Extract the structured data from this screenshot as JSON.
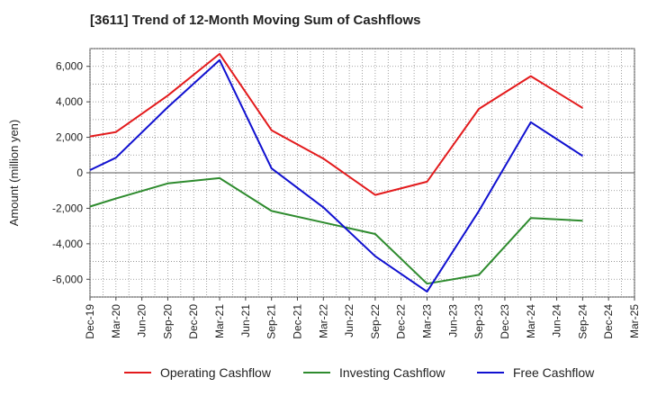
{
  "chart_data": {
    "type": "line",
    "title": "[3611]  Trend of 12-Month Moving Sum of Cashflows",
    "ylabel": "Amount (million yen)",
    "xlabel": "",
    "x": [
      "Dec-19",
      "Mar-20",
      "Jun-20",
      "Sep-20",
      "Dec-20",
      "Mar-21",
      "Jun-21",
      "Sep-21",
      "Dec-21",
      "Mar-22",
      "Jun-22",
      "Sep-22",
      "Dec-22",
      "Mar-23",
      "Jun-23",
      "Sep-23",
      "Dec-23",
      "Mar-24",
      "Jun-24",
      "Sep-24",
      "Dec-24",
      "Mar-25"
    ],
    "yticks": [
      -6000,
      -4000,
      -2000,
      0,
      2000,
      4000,
      6000
    ],
    "ytick_labels": [
      "-6,000",
      "-4,000",
      "-2,000",
      "0",
      "2,000",
      "4,000",
      "6,000"
    ],
    "ylim": [
      -7000,
      7000
    ],
    "grid": true,
    "legend_position": "bottom",
    "series": [
      {
        "name": "Operating Cashflow",
        "color": "#e31a1c",
        "values": [
          2050,
          2300,
          null,
          4350,
          null,
          6700,
          null,
          2400,
          null,
          800,
          null,
          -1250,
          null,
          -500,
          null,
          3600,
          null,
          5450,
          null,
          3650,
          null,
          null
        ]
      },
      {
        "name": "Investing Cashflow",
        "color": "#2e8b2e",
        "values": [
          -1900,
          -1450,
          null,
          -600,
          null,
          -300,
          null,
          -2150,
          null,
          -2800,
          null,
          -3450,
          null,
          -6250,
          null,
          -5750,
          null,
          -2550,
          null,
          -2700,
          null,
          null
        ]
      },
      {
        "name": "Free Cashflow",
        "color": "#1010d0",
        "values": [
          150,
          850,
          null,
          3700,
          null,
          6350,
          null,
          250,
          null,
          -1950,
          null,
          -4700,
          null,
          -6700,
          null,
          -2150,
          null,
          2850,
          null,
          950,
          null,
          null
        ]
      }
    ]
  }
}
